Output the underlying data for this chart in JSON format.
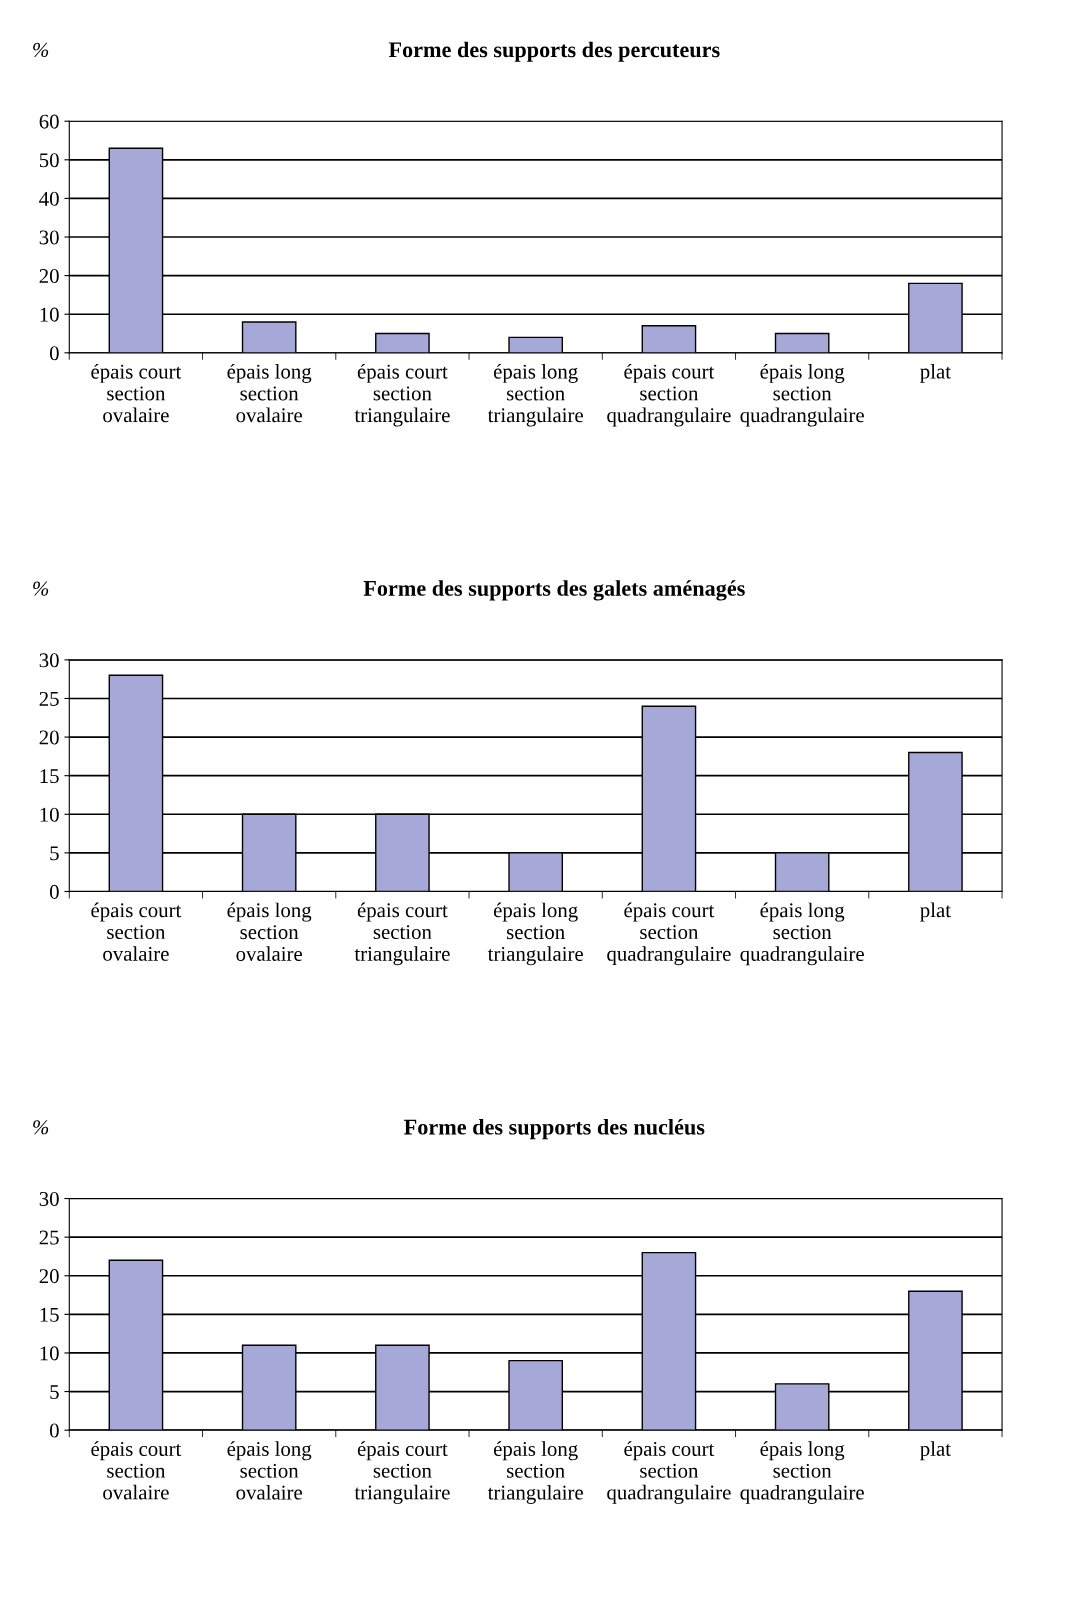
{
  "chart_data": [
    {
      "type": "bar",
      "title": "Forme des supports des percuteurs",
      "ylabel": "%",
      "categories": [
        "épais court\nsection\novalaire",
        "épais long\nsection\novalaire",
        "épais court\nsection\ntriangulaire",
        "épais long\nsection\ntriangulaire",
        "épais court\nsection\nquadrangulaire",
        "épais long\nsection\nquadrangulaire",
        "plat"
      ],
      "values": [
        53,
        8,
        5,
        4,
        7,
        5,
        18
      ],
      "color": "#a6a9d8",
      "ylim": [
        0,
        60
      ],
      "yticks": [
        0,
        10,
        20,
        30,
        40,
        50,
        60
      ],
      "grid": "y",
      "legend": false
    },
    {
      "type": "bar",
      "title": "Forme des supports des galets aménagés",
      "ylabel": "%",
      "categories": [
        "épais court\nsection\novalaire",
        "épais long\nsection\novalaire",
        "épais court\nsection\ntriangulaire",
        "épais long\nsection\ntriangulaire",
        "épais court\nsection\nquadrangulaire",
        "épais long\nsection\nquadrangulaire",
        "plat"
      ],
      "values": [
        28,
        10,
        10,
        5,
        24,
        5,
        18
      ],
      "color": "#a6a9d8",
      "ylim": [
        0,
        30
      ],
      "yticks": [
        0,
        5,
        10,
        15,
        20,
        25,
        30
      ],
      "grid": "y",
      "legend": false
    },
    {
      "type": "bar",
      "title": "Forme des supports des nucléus",
      "ylabel": "%",
      "categories": [
        "épais court\nsection\novalaire",
        "épais long\nsection\novalaire",
        "épais court\nsection\ntriangulaire",
        "épais long\nsection\ntriangulaire",
        "épais court\nsection\nquadrangulaire",
        "épais long\nsection\nquadrangulaire",
        "plat"
      ],
      "values": [
        22,
        11,
        11,
        9,
        23,
        6,
        18
      ],
      "color": "#a6a9d8",
      "ylim": [
        0,
        30
      ],
      "yticks": [
        0,
        5,
        10,
        15,
        20,
        25,
        30
      ],
      "grid": "y",
      "legend": false
    }
  ]
}
